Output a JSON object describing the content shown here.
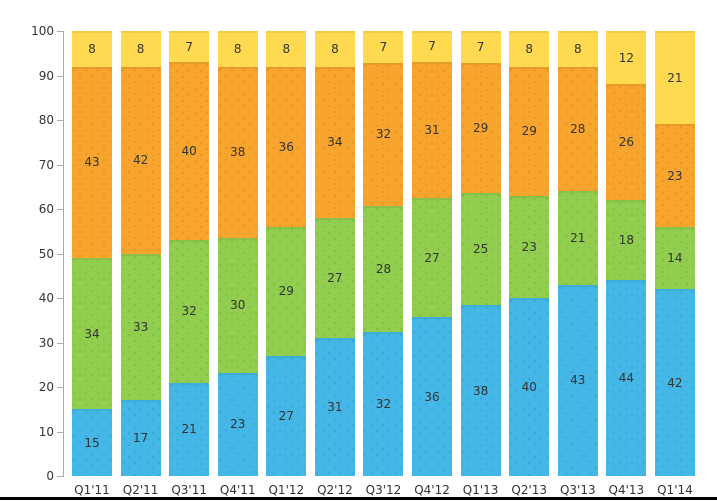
{
  "page": {
    "background": "#FFFFFF"
  },
  "chart_data": {
    "type": "bar",
    "variant": "stacked-column-100",
    "title": "",
    "xlabel": "",
    "ylabel": "",
    "legend": "none",
    "grid": "off",
    "value_labels": "inside-center",
    "categories": [
      "Q1'11",
      "Q2'11",
      "Q3'11",
      "Q4'11",
      "Q1'12",
      "Q2'12",
      "Q3'12",
      "Q4'12",
      "Q1'13",
      "Q2'13",
      "Q3'13",
      "Q4'13",
      "Q1'14"
    ],
    "series": [
      {
        "name": "series-blue",
        "key": "blue",
        "color": "#45B7E6",
        "dot_color": "#35A9D8",
        "dots": true,
        "values": [
          15,
          17,
          21,
          23,
          27,
          31,
          32,
          36,
          38,
          40,
          43,
          44,
          42
        ]
      },
      {
        "name": "series-green",
        "key": "green",
        "color": "#91CD4F",
        "dot_color": "#7FBE3E",
        "dots": true,
        "values": [
          34,
          33,
          32,
          30,
          29,
          27,
          28,
          27,
          25,
          23,
          21,
          18,
          14
        ]
      },
      {
        "name": "series-orange",
        "key": "orange",
        "color": "#F7A52E",
        "dot_color": "#E8941D",
        "dots": true,
        "values": [
          43,
          42,
          40,
          38,
          36,
          34,
          32,
          31,
          29,
          29,
          28,
          26,
          23
        ]
      },
      {
        "name": "series-yellow",
        "key": "yellow",
        "color": "#FFD94F",
        "dot_color": "#FFD94F",
        "dots": false,
        "values": [
          8,
          8,
          7,
          8,
          8,
          8,
          7,
          7,
          7,
          8,
          8,
          12,
          21
        ]
      }
    ],
    "y_axis": {
      "min": 0,
      "max": 100,
      "step": 10,
      "ticks": [
        0,
        10,
        20,
        30,
        40,
        50,
        60,
        70,
        80,
        90,
        100
      ]
    }
  },
  "style": {
    "axis_color": "#ABABAB",
    "text_color": "#333333",
    "bottom_bar_color": "#000000"
  }
}
